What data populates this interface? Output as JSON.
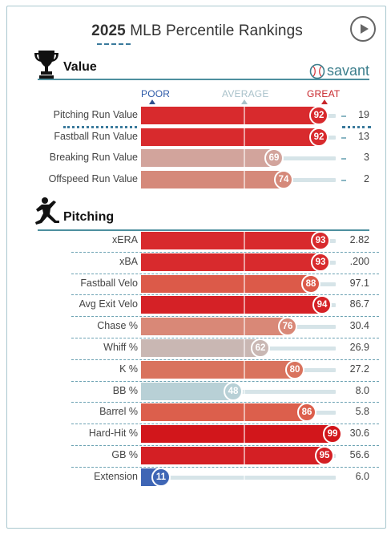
{
  "header": {
    "year": "2025",
    "title": "MLB Percentile Rankings"
  },
  "brand": {
    "name": "savant"
  },
  "scale": {
    "poor": "POOR",
    "average": "AVERAGE",
    "great": "GREAT"
  },
  "colors": {
    "great_red": "#d22d31",
    "poor_blue": "#3f66b5",
    "track": "#d6e4e8",
    "accent": "#3d7f8d"
  },
  "sections": [
    {
      "title": "Value",
      "icon": "trophy-icon",
      "rows": [
        {
          "metric": "Pitching Run Value",
          "percentile": 92,
          "value": "19",
          "color": "#d82a2d"
        },
        {
          "metric": "Fastball Run Value",
          "percentile": 92,
          "value": "13",
          "color": "#d82a2d"
        },
        {
          "metric": "Breaking Run Value",
          "percentile": 69,
          "value": "3",
          "color": "#d2a49c"
        },
        {
          "metric": "Offspeed Run Value",
          "percentile": 74,
          "value": "2",
          "color": "#d5897a"
        }
      ]
    },
    {
      "title": "Pitching",
      "icon": "pitcher-icon",
      "rows": [
        {
          "metric": "xERA",
          "percentile": 93,
          "value": "2.82",
          "color": "#d82a2d"
        },
        {
          "metric": "xBA",
          "percentile": 93,
          "value": ".200",
          "color": "#d82a2d"
        },
        {
          "metric": "Fastball Velo",
          "percentile": 88,
          "value": "97.1",
          "color": "#dc5a49"
        },
        {
          "metric": "Avg Exit Velo",
          "percentile": 94,
          "value": "86.7",
          "color": "#d52126"
        },
        {
          "metric": "Chase %",
          "percentile": 76,
          "value": "30.4",
          "color": "#d98877"
        },
        {
          "metric": "Whiff %",
          "percentile": 62,
          "value": "26.9",
          "color": "#c9b7b3"
        },
        {
          "metric": "K %",
          "percentile": 80,
          "value": "27.2",
          "color": "#d9735e"
        },
        {
          "metric": "BB %",
          "percentile": 48,
          "value": "8.0",
          "color": "#b8d0d6"
        },
        {
          "metric": "Barrel %",
          "percentile": 86,
          "value": "5.8",
          "color": "#dc5f4c"
        },
        {
          "metric": "Hard-Hit %",
          "percentile": 99,
          "value": "30.6",
          "color": "#d2161b"
        },
        {
          "metric": "GB %",
          "percentile": 95,
          "value": "56.6",
          "color": "#d41f24"
        },
        {
          "metric": "Extension",
          "percentile": 11,
          "value": "6.0",
          "color": "#3f66b5"
        }
      ]
    }
  ]
}
